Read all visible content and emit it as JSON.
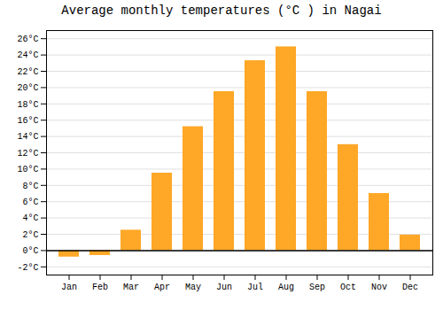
{
  "chart_data": {
    "type": "bar",
    "title": "Average monthly temperatures (°C ) in Nagai",
    "categories": [
      "Jan",
      "Feb",
      "Mar",
      "Apr",
      "May",
      "Jun",
      "Jul",
      "Aug",
      "Sep",
      "Oct",
      "Nov",
      "Dec"
    ],
    "values": [
      -0.8,
      -0.6,
      2.5,
      9.5,
      15.2,
      19.5,
      23.3,
      25.0,
      19.5,
      13.0,
      7.0,
      1.9
    ],
    "color": "#FFA726",
    "ylim": [
      -3,
      27
    ],
    "yticks": [
      {
        "value": -2,
        "label": "-2°C"
      },
      {
        "value": 0,
        "label": "0°C"
      },
      {
        "value": 2,
        "label": "2°C"
      },
      {
        "value": 4,
        "label": "4°C"
      },
      {
        "value": 6,
        "label": "6°C"
      },
      {
        "value": 8,
        "label": "8°C"
      },
      {
        "value": 10,
        "label": "10°C"
      },
      {
        "value": 12,
        "label": "12°C"
      },
      {
        "value": 14,
        "label": "14°C"
      },
      {
        "value": 16,
        "label": "16°C"
      },
      {
        "value": 18,
        "label": "18°C"
      },
      {
        "value": 20,
        "label": "20°C"
      },
      {
        "value": 22,
        "label": "22°C"
      },
      {
        "value": 24,
        "label": "24°C"
      },
      {
        "value": 26,
        "label": "26°C"
      }
    ],
    "grid": true
  }
}
